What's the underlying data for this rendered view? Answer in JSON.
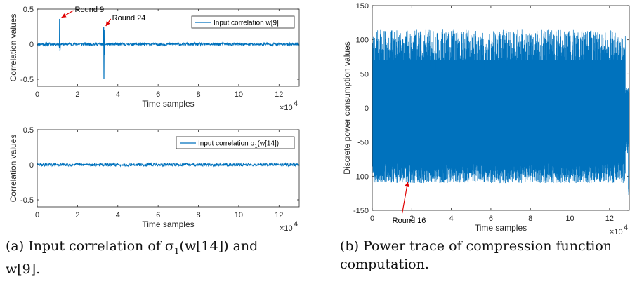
{
  "chart_data": [
    {
      "id": "a_top",
      "type": "line",
      "xlabel": "Time samples",
      "ylabel": "Correlation values",
      "x_exponent_label": "×10",
      "x_exponent_sup": "4",
      "xlim": [
        0,
        13
      ],
      "ylim": [
        -0.6,
        0.5
      ],
      "xticks": [
        0,
        2,
        4,
        6,
        8,
        10,
        12
      ],
      "yticks": [
        -0.5,
        0,
        0.5
      ],
      "ytick_labels": [
        "-0.5",
        "0",
        "0.5"
      ],
      "color": "#0072BD",
      "series": [
        {
          "name": "Input correlation w[9]",
          "baseline": 0,
          "noise_amplitude": 0.02,
          "spikes": [
            {
              "x": 1.1,
              "values": [
                -0.05,
                0.36,
                0.34,
                -0.1
              ]
            },
            {
              "x": 3.3,
              "values": [
                0.24,
                -0.5,
                0.2,
                -0.15
              ]
            }
          ]
        }
      ],
      "legend": {
        "text": "Input correlation w[9]",
        "position": "top-right"
      },
      "annotations": [
        {
          "text": "Round 9",
          "x": 1.1,
          "y": 0.36
        },
        {
          "text": "Round 24",
          "x": 3.3,
          "y": 0.24
        }
      ]
    },
    {
      "id": "a_bottom",
      "type": "line",
      "xlabel": "Time samples",
      "ylabel": "Correlation values",
      "x_exponent_label": "×10",
      "x_exponent_sup": "4",
      "xlim": [
        0,
        13
      ],
      "ylim": [
        -0.6,
        0.5
      ],
      "xticks": [
        0,
        2,
        4,
        6,
        8,
        10,
        12
      ],
      "yticks": [
        -0.5,
        0,
        0.5
      ],
      "ytick_labels": [
        "-0.5",
        "0",
        "0.5"
      ],
      "color": "#0072BD",
      "series": [
        {
          "name": "Input correlation σ1(w[14])",
          "baseline": 0,
          "noise_amplitude": 0.02,
          "spikes": []
        }
      ],
      "legend": {
        "text": "Input correlation ",
        "sigma": "σ",
        "sub": "1",
        "suffix": "(w[14])",
        "position": "top-right"
      }
    },
    {
      "id": "b",
      "type": "line",
      "xlabel": "Time samples",
      "ylabel": "Discrete power consumption values",
      "x_exponent_label": "×10",
      "x_exponent_sup": "4",
      "xlim": [
        0,
        13
      ],
      "ylim": [
        -150,
        150
      ],
      "xticks": [
        0,
        2,
        4,
        6,
        8,
        10,
        12
      ],
      "yticks": [
        -150,
        -100,
        -50,
        0,
        50,
        100,
        150
      ],
      "ytick_labels": [
        "-150",
        "-100",
        "-50",
        "0",
        "50",
        "100",
        "150"
      ],
      "color": "#0072BD",
      "series": [
        {
          "name": "Power trace",
          "upper_envelope": [
            50,
            115
          ],
          "lower_envelope": [
            -80,
            -110
          ],
          "dense_band": [
            -45,
            70
          ],
          "end_drop_value": -128
        }
      ],
      "annotations": [
        {
          "text": "Round 16",
          "x": 1.8,
          "y": -105
        }
      ]
    }
  ],
  "captions": {
    "a_line1": "(a) Input correlation of σ",
    "a_sub": "1",
    "a_line1_rest": "(w[14]) and",
    "a_line2": "w[9].",
    "b_line1": "(b) Power trace of compression function",
    "b_line2": "computation."
  }
}
